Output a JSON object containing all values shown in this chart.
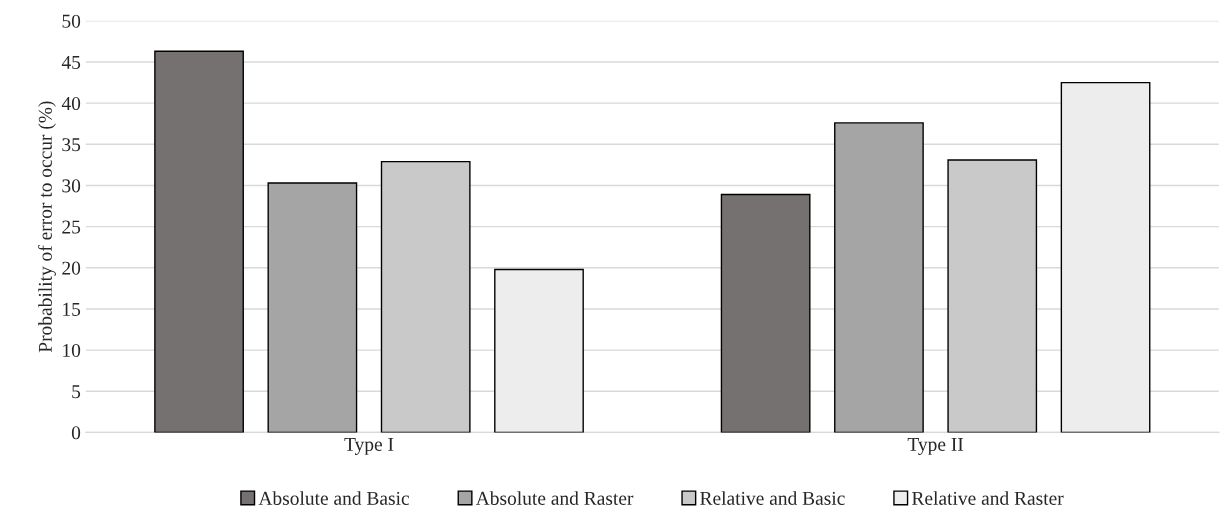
{
  "chart_data": {
    "type": "bar",
    "ylabel": "Probability of error to occur (%)",
    "categories": [
      "Type I",
      "Type II"
    ],
    "series": [
      {
        "name": "Absolute and Basic",
        "color": "#767171",
        "values": [
          46.3,
          28.9
        ]
      },
      {
        "name": "Absolute and Raster",
        "color": "#a5a5a5",
        "values": [
          30.3,
          37.6
        ]
      },
      {
        "name": "Relative and Basic",
        "color": "#c9c9c9",
        "values": [
          32.9,
          33.1
        ]
      },
      {
        "name": "Relative and Raster",
        "color": "#ededed",
        "values": [
          19.8,
          42.5
        ]
      }
    ],
    "ylim": [
      0,
      50
    ],
    "yticks": [
      0,
      5,
      10,
      15,
      20,
      25,
      30,
      35,
      40,
      45,
      50
    ],
    "grid": "y",
    "legend": "bottom"
  }
}
